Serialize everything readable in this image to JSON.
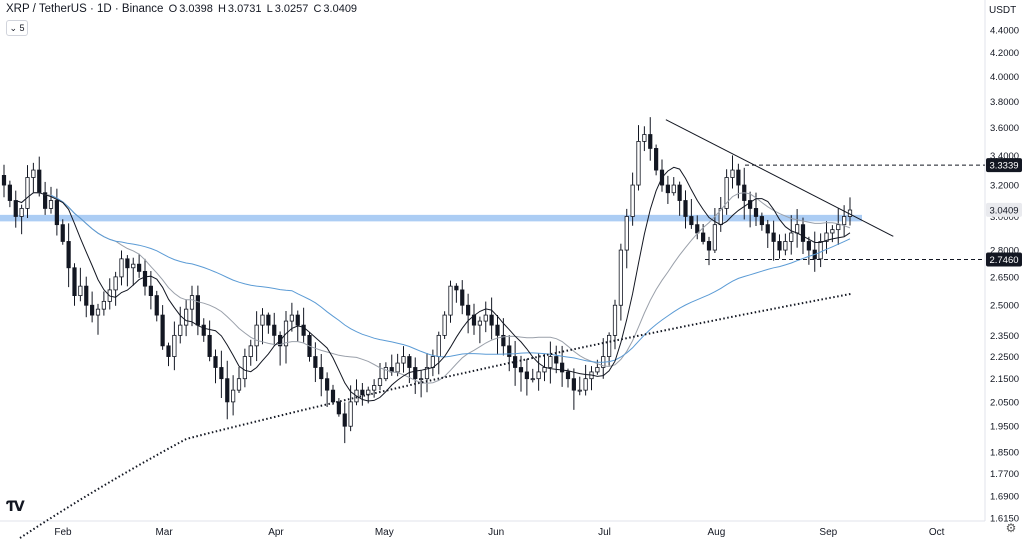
{
  "header": {
    "symbol": "XRP / TetherUS · 1D · Binance",
    "o_label": "O",
    "o_value": "3.0398",
    "h_label": "H",
    "h_value": "3.0731",
    "l_label": "L",
    "l_value": "3.0257",
    "c_label": "C",
    "c_value": "3.0409",
    "indicator_toggle": "5",
    "currency": "USDT"
  },
  "chart_data": {
    "type": "candlestick",
    "title": "XRP / TetherUS · 1D · Binance",
    "y_axis": {
      "scale": "log",
      "ticks": [
        "4.4000",
        "4.2000",
        "4.0000",
        "3.8000",
        "3.6000",
        "3.4000",
        "3.2000",
        "3.0000",
        "2.8000",
        "2.6500",
        "2.5000",
        "2.3500",
        "2.2500",
        "2.1500",
        "2.0500",
        "1.9500",
        "1.8500",
        "1.7700",
        "1.6900",
        "1.6150"
      ],
      "range": [
        1.6,
        4.6
      ]
    },
    "x_axis": {
      "months": [
        "Feb",
        "Mar",
        "Apr",
        "May",
        "Jun",
        "Jul",
        "Aug",
        "Sep",
        "Oct"
      ]
    },
    "price_labels": [
      {
        "value": "3.3339",
        "dark": true
      },
      {
        "value": "3.0409",
        "dark": false
      },
      {
        "value": "2.7460",
        "dark": true
      }
    ],
    "resistance_level": 3.3339,
    "support_level": 2.746,
    "support_zone": [
      2.97,
      3.01
    ],
    "trendline": {
      "from": {
        "date": "2025-07-18",
        "price": 3.66
      },
      "to": {
        "date": "2025-09-19",
        "price": 2.88
      }
    },
    "candles_close": [
      3.2,
      3.1,
      3.0,
      3.05,
      3.25,
      3.3,
      3.15,
      3.05,
      3.1,
      2.95,
      2.85,
      2.7,
      2.55,
      2.6,
      2.5,
      2.45,
      2.48,
      2.52,
      2.58,
      2.65,
      2.75,
      2.7,
      2.72,
      2.68,
      2.6,
      2.55,
      2.45,
      2.3,
      2.25,
      2.35,
      2.4,
      2.48,
      2.55,
      2.4,
      2.35,
      2.25,
      2.2,
      2.15,
      2.05,
      2.1,
      2.15,
      2.25,
      2.3,
      2.4,
      2.45,
      2.4,
      2.35,
      2.3,
      2.42,
      2.45,
      2.4,
      2.35,
      2.25,
      2.2,
      2.15,
      2.1,
      2.05,
      2.0,
      1.95,
      2.05,
      2.1,
      2.08,
      2.1,
      2.12,
      2.15,
      2.2,
      2.18,
      2.22,
      2.25,
      2.2,
      2.15,
      2.15,
      2.2,
      2.25,
      2.35,
      2.45,
      2.6,
      2.58,
      2.5,
      2.45,
      2.4,
      2.42,
      2.45,
      2.4,
      2.35,
      2.3,
      2.25,
      2.2,
      2.18,
      2.15,
      2.15,
      2.18,
      2.2,
      2.25,
      2.22,
      2.18,
      2.15,
      2.1,
      2.1,
      2.15,
      2.18,
      2.2,
      2.25,
      2.35,
      2.5,
      2.8,
      3.0,
      3.2,
      3.5,
      3.55,
      3.45,
      3.3,
      3.2,
      3.15,
      3.2,
      3.1,
      3.0,
      2.95,
      2.9,
      2.85,
      2.8,
      2.95,
      3.05,
      3.25,
      3.3,
      3.2,
      3.1,
      3.05,
      3.0,
      2.95,
      2.9,
      2.85,
      2.8,
      2.85,
      2.9,
      2.95,
      2.85,
      2.8,
      2.75,
      2.85,
      2.9,
      2.92,
      2.95,
      3.0,
      3.04
    ],
    "series": [
      {
        "kind": "candles"
      },
      {
        "kind": "ma",
        "period": "short"
      },
      {
        "kind": "ma",
        "period": "medium"
      },
      {
        "kind": "ma",
        "period": "long"
      },
      {
        "kind": "ma",
        "period": "200-day dotted"
      }
    ],
    "colors": {
      "candle": "#131722",
      "ma_short": "#131722",
      "ma_medium": "#9aa0aa",
      "ma_long": "#5b9bd5",
      "ma_200": "#131722",
      "zone": "#9ec4f2"
    }
  }
}
